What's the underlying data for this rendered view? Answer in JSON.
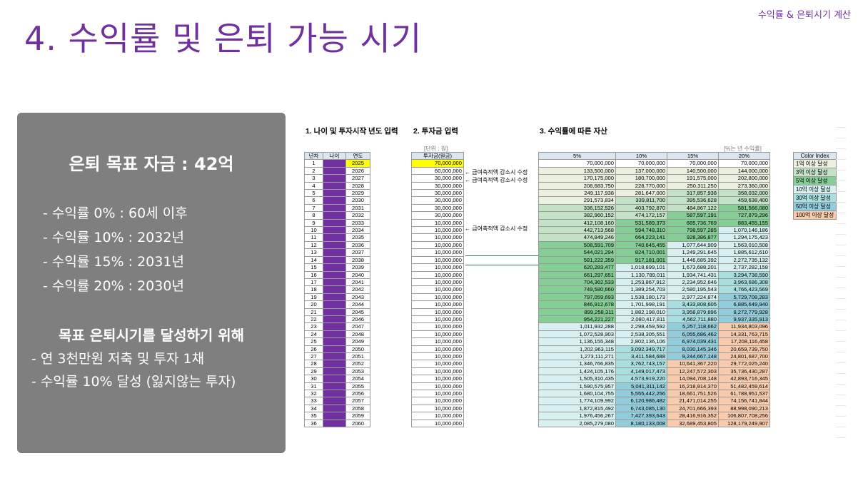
{
  "header": {
    "corner_label": "수익률 & 은퇴시기 계산",
    "title": "4. 수익률 및 은퇴 가능 시기"
  },
  "panel": {
    "goal": "은퇴 목표 자금 : 42억",
    "rates": [
      "- 수익률   0% : 60세 이후",
      "- 수익률 10% : 2032년",
      "- 수익률 15% : 2031년",
      "- 수익률 20% : 2030년"
    ],
    "subtitle": "목표 은퇴시기를 달성하기 위해",
    "bullets": [
      "- 연 3천만원 저축 및 투자 1채",
      "- 수익률 10% 달성 (잃지않는 투자)"
    ]
  },
  "sheet": {
    "section1": "1. 나이 및 투자시작 년도 입력",
    "section2": "2. 투자금 입력",
    "section3": "3. 수익률에 따른 자산",
    "unit_label": "[단위 : 원]",
    "pct_label": "[%는 년 수익률]",
    "left_headers": [
      "년차",
      "나이",
      "연도"
    ],
    "invest_header": "투자금(원금)",
    "rate_headers": [
      "5%",
      "10%",
      "15%",
      "20%"
    ],
    "notes": [
      "← 급여축적액 감소시 수정",
      "← 급여축적액 감소시 수정",
      "← 급여축적액 감소시 수정"
    ],
    "color_index": {
      "title": "Color Index",
      "items": [
        {
          "label": "1억 이상 달성",
          "color": "#ebf1de"
        },
        {
          "label": "3억 이상 달성",
          "color": "#c4e2c5"
        },
        {
          "label": "5억 이상 달성",
          "color": "#85cf96"
        },
        {
          "label": "10억 이상 달성",
          "color": "#d8f0f0"
        },
        {
          "label": "30억 이상 달성",
          "color": "#a9dfe0"
        },
        {
          "label": "50억 이상 달성",
          "color": "#92cddc"
        },
        {
          "label": "100억 이상 달성",
          "color": "#f8cbad"
        }
      ]
    },
    "rows": [
      {
        "n": "1",
        "year": "2025",
        "inv": "70,000,000",
        "r": [
          "70,000,000",
          "70,000,000",
          "70,000,000",
          "70,000,000"
        ]
      },
      {
        "n": "2",
        "year": "2026",
        "inv": "60,000,000",
        "r": [
          "133,500,000",
          "137,000,000",
          "140,500,000",
          "144,000,000"
        ]
      },
      {
        "n": "3",
        "year": "2027",
        "inv": "30,000,000",
        "r": [
          "170,175,000",
          "180,700,000",
          "191,575,000",
          "202,800,000"
        ]
      },
      {
        "n": "4",
        "year": "2028",
        "inv": "30,000,000",
        "r": [
          "208,683,750",
          "228,770,000",
          "250,311,250",
          "273,360,000"
        ]
      },
      {
        "n": "5",
        "year": "2029",
        "inv": "30,000,000",
        "r": [
          "249,117,938",
          "281,647,000",
          "317,857,938",
          "358,032,000"
        ]
      },
      {
        "n": "6",
        "year": "2030",
        "inv": "30,000,000",
        "r": [
          "291,573,834",
          "339,811,700",
          "395,536,628",
          "459,638,400"
        ]
      },
      {
        "n": "7",
        "year": "2031",
        "inv": "30,000,000",
        "r": [
          "336,152,526",
          "403,792,870",
          "484,867,122",
          "581,566,080"
        ]
      },
      {
        "n": "8",
        "year": "2032",
        "inv": "30,000,000",
        "r": [
          "382,960,152",
          "474,172,157",
          "587,597,191",
          "727,879,296"
        ]
      },
      {
        "n": "9",
        "year": "2033",
        "inv": "10,000,000",
        "r": [
          "412,108,160",
          "531,589,373",
          "685,736,769",
          "883,455,155"
        ]
      },
      {
        "n": "10",
        "year": "2034",
        "inv": "10,000,000",
        "r": [
          "442,713,568",
          "594,748,310",
          "798,597,285",
          "1,070,146,186"
        ]
      },
      {
        "n": "11",
        "year": "2035",
        "inv": "10,000,000",
        "r": [
          "474,849,246",
          "664,223,141",
          "928,386,877",
          "1,294,175,423"
        ]
      },
      {
        "n": "12",
        "year": "2036",
        "inv": "10,000,000",
        "r": [
          "508,591,709",
          "740,645,455",
          "1,077,644,909",
          "1,563,010,508"
        ]
      },
      {
        "n": "13",
        "year": "2037",
        "inv": "10,000,000",
        "r": [
          "544,021,294",
          "824,710,001",
          "1,249,291,645",
          "1,885,612,610"
        ]
      },
      {
        "n": "14",
        "year": "2038",
        "inv": "10,000,000",
        "r": [
          "581,222,359",
          "917,181,001",
          "1,446,685,392",
          "2,272,735,132"
        ]
      },
      {
        "n": "15",
        "year": "2039",
        "inv": "10,000,000",
        "r": [
          "620,283,477",
          "1,018,899,101",
          "1,673,688,201",
          "2,737,282,158"
        ]
      },
      {
        "n": "16",
        "year": "2040",
        "inv": "10,000,000",
        "r": [
          "661,297,651",
          "1,130,789,011",
          "1,934,741,431",
          "3,294,738,590"
        ]
      },
      {
        "n": "17",
        "year": "2041",
        "inv": "10,000,000",
        "r": [
          "704,362,533",
          "1,253,867,912",
          "2,234,952,646",
          "3,963,686,308"
        ]
      },
      {
        "n": "18",
        "year": "2042",
        "inv": "10,000,000",
        "r": [
          "749,580,660",
          "1,389,254,703",
          "2,580,195,543",
          "4,766,423,569"
        ]
      },
      {
        "n": "19",
        "year": "2043",
        "inv": "10,000,000",
        "r": [
          "797,059,693",
          "1,538,180,173",
          "2,977,224,874",
          "5,729,708,283"
        ]
      },
      {
        "n": "20",
        "year": "2044",
        "inv": "10,000,000",
        "r": [
          "846,912,678",
          "1,701,998,191",
          "3,433,808,605",
          "6,885,649,940"
        ]
      },
      {
        "n": "21",
        "year": "2045",
        "inv": "10,000,000",
        "r": [
          "899,258,311",
          "1,882,198,010",
          "3,958,879,896",
          "8,272,779,928"
        ]
      },
      {
        "n": "22",
        "year": "2046",
        "inv": "10,000,000",
        "r": [
          "954,221,227",
          "2,080,417,811",
          "4,562,711,880",
          "9,937,335,913"
        ]
      },
      {
        "n": "23",
        "year": "2047",
        "inv": "10,000,000",
        "r": [
          "1,011,932,288",
          "2,298,459,592",
          "5,257,118,662",
          "11,934,803,096"
        ]
      },
      {
        "n": "24",
        "year": "2048",
        "inv": "10,000,000",
        "r": [
          "1,072,528,903",
          "2,538,305,551",
          "6,055,686,462",
          "14,331,763,715"
        ]
      },
      {
        "n": "25",
        "year": "2049",
        "inv": "10,000,000",
        "r": [
          "1,136,155,348",
          "2,802,136,106",
          "6,974,039,431",
          "17,208,116,458"
        ]
      },
      {
        "n": "26",
        "year": "2050",
        "inv": "10,000,000",
        "r": [
          "1,202,963,115",
          "3,092,349,717",
          "8,030,145,346",
          "20,659,739,750"
        ]
      },
      {
        "n": "27",
        "year": "2051",
        "inv": "10,000,000",
        "r": [
          "1,273,111,271",
          "3,411,584,688",
          "9,244,667,148",
          "24,801,687,700"
        ]
      },
      {
        "n": "28",
        "year": "2052",
        "inv": "10,000,000",
        "r": [
          "1,346,766,835",
          "3,762,743,157",
          "10,641,367,220",
          "29,772,025,240"
        ]
      },
      {
        "n": "29",
        "year": "2053",
        "inv": "10,000,000",
        "r": [
          "1,424,105,176",
          "4,149,017,473",
          "12,247,572,303",
          "35,736,430,287"
        ]
      },
      {
        "n": "30",
        "year": "2054",
        "inv": "10,000,000",
        "r": [
          "1,505,310,435",
          "4,573,919,220",
          "14,094,708,148",
          "42,893,716,345"
        ]
      },
      {
        "n": "31",
        "year": "2055",
        "inv": "10,000,000",
        "r": [
          "1,590,575,957",
          "5,041,311,142",
          "16,218,914,370",
          "51,482,459,614"
        ]
      },
      {
        "n": "32",
        "year": "2056",
        "inv": "10,000,000",
        "r": [
          "1,680,104,755",
          "5,555,442,256",
          "18,661,751,526",
          "61,788,951,537"
        ]
      },
      {
        "n": "33",
        "year": "2057",
        "inv": "10,000,000",
        "r": [
          "1,774,109,992",
          "6,120,986,482",
          "21,471,014,255",
          "74,156,741,844"
        ]
      },
      {
        "n": "34",
        "year": "2058",
        "inv": "10,000,000",
        "r": [
          "1,872,815,492",
          "6,743,085,130",
          "24,701,666,393",
          "88,998,090,213"
        ]
      },
      {
        "n": "35",
        "year": "2059",
        "inv": "10,000,000",
        "r": [
          "1,976,456,267",
          "7,427,393,643",
          "28,416,916,352",
          "106,807,708,256"
        ]
      },
      {
        "n": "36",
        "year": "2060",
        "inv": "10,000,000",
        "r": [
          "2,085,279,080",
          "8,180,133,008",
          "32,689,453,805",
          "128,179,249,907"
        ]
      }
    ]
  }
}
